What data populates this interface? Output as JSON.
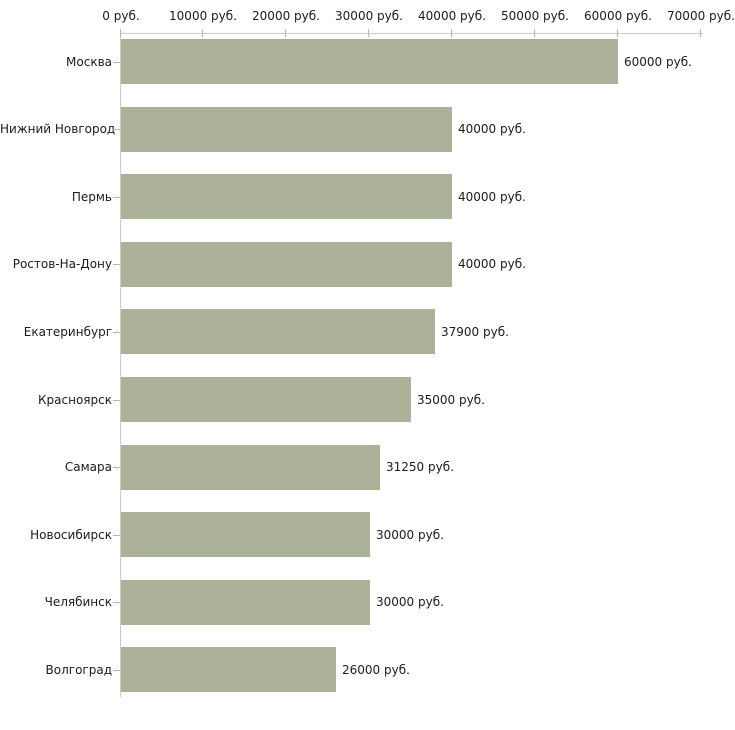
{
  "chart_data": {
    "type": "bar",
    "orientation": "horizontal",
    "title": "",
    "xlabel": "",
    "ylabel": "",
    "unit_suffix": " руб.",
    "categories": [
      "Москва",
      "Нижний Новгород",
      "Пермь",
      "Ростов-На-Дону",
      "Екатеринбург",
      "Красноярск",
      "Самара",
      "Новосибирск",
      "Челябинск",
      "Волгоград"
    ],
    "values": [
      60000,
      40000,
      40000,
      40000,
      37900,
      35000,
      31250,
      30000,
      30000,
      26000
    ],
    "value_labels": [
      "60000 руб.",
      "40000 руб.",
      "40000 руб.",
      "40000 руб.",
      "37900 руб.",
      "35000 руб.",
      "31250 руб.",
      "30000 руб.",
      "30000 руб.",
      "26000 руб."
    ],
    "x_axis": {
      "position": "top",
      "min": 0,
      "max": 70000,
      "tick_values": [
        0,
        10000,
        20000,
        30000,
        40000,
        50000,
        60000,
        70000
      ],
      "tick_labels": [
        "0 руб.",
        "10000 руб.",
        "20000 руб.",
        "30000 руб.",
        "40000 руб.",
        "50000 руб.",
        "60000 руб.",
        "70000 руб."
      ]
    },
    "legend": "none",
    "grid": "off",
    "colors": {
      "bar": "#acb29a",
      "axis": "#ccccc4",
      "tick": "#bcb890",
      "text": "#1b1b1b",
      "background": "#ffffff"
    }
  }
}
